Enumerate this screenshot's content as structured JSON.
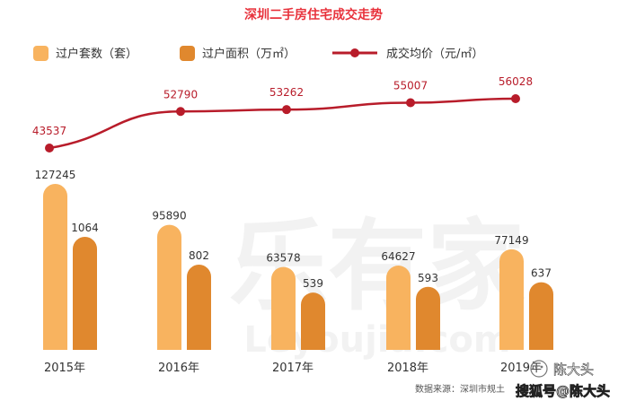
{
  "chart_data": {
    "type": "bar",
    "title": "深圳二手房住宅成交走势",
    "categories": [
      "2015年",
      "2016年",
      "2017年",
      "2018年",
      "2019年"
    ],
    "series": [
      {
        "name": "过户套数（套）",
        "kind": "bar",
        "values": [
          127245,
          95890,
          63578,
          64627,
          77149
        ]
      },
      {
        "name": "过户面积（万㎡）",
        "kind": "bar",
        "values": [
          1064,
          802,
          539,
          593,
          637
        ]
      },
      {
        "name": "成交均价（元/㎡）",
        "kind": "line",
        "values": [
          43537,
          52790,
          53262,
          55007,
          56028
        ]
      }
    ],
    "legend_position": "top",
    "grid": false,
    "source": "数据来源：深圳市规土",
    "colors": {
      "units_bar": "#f8b35f",
      "area_bar": "#e0882e",
      "price_line": "#b81c2a",
      "title": "#e8323c"
    }
  },
  "watermark": {
    "brand": "乐有家",
    "domain": "Leyoujia.com"
  },
  "credit": {
    "author": "陈大头",
    "platform": "搜狐号@陈大头"
  }
}
